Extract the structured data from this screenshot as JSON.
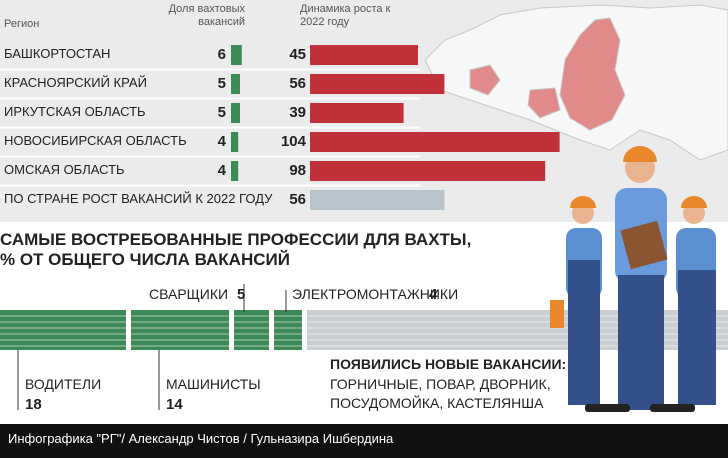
{
  "chart_data": [
    {
      "type": "bar",
      "header": "Регион",
      "categories": [
        "БАШКОРТОСТАН",
        "КРАСНОЯРСКИЙ КРАЙ",
        "ИРКУТСКАЯ ОБЛАСТЬ",
        "НОВОСИБИРСКАЯ ОБЛАСТЬ",
        "ОМСКАЯ ОБЛАСТЬ",
        "ПО СТРАНЕ РОСТ ВАКАНСИЙ К 2022 ГОДУ"
      ],
      "series": [
        {
          "name": "Доля вахтовых вакансий",
          "color": "#3d8a57",
          "values": [
            6,
            5,
            5,
            4,
            4,
            null
          ]
        },
        {
          "name": "Динамика роста к 2022 году",
          "colors": [
            "#c0313a",
            "#c0313a",
            "#c0313a",
            "#c0313a",
            "#c0313a",
            "#b9c3ca"
          ],
          "values": [
            45,
            56,
            39,
            104,
            98,
            56
          ]
        }
      ]
    },
    {
      "type": "stacked-bar",
      "title": "САМЫЕ ВОСТРЕБОВАННЫЕ ПРОФЕССИИ ДЛЯ ВАХТЫ,\n% ОТ ОБЩЕГО ЧИСЛА ВАКАНСИЙ",
      "categories": [
        "ВОДИТЕЛИ",
        "МАШИНИСТЫ",
        "СВАРЩИКИ",
        "ЭЛЕКТРОМОНТАЖНИКИ"
      ],
      "values": [
        18,
        14,
        5,
        4
      ],
      "color": "#3d8a57",
      "note_title": "ПОЯВИЛИСЬ НОВЫЕ ВАКАНСИИ:",
      "note_lines": [
        "ГОРНИЧНЫЕ, ПОВАР, ДВОРНИК,",
        "ПОСУДОМОЙКА, КАСТЕЛЯНША"
      ]
    }
  ],
  "credit": "Инфографика \"РГ\"/ Александр Чистов / Гульназира Ишбердина"
}
